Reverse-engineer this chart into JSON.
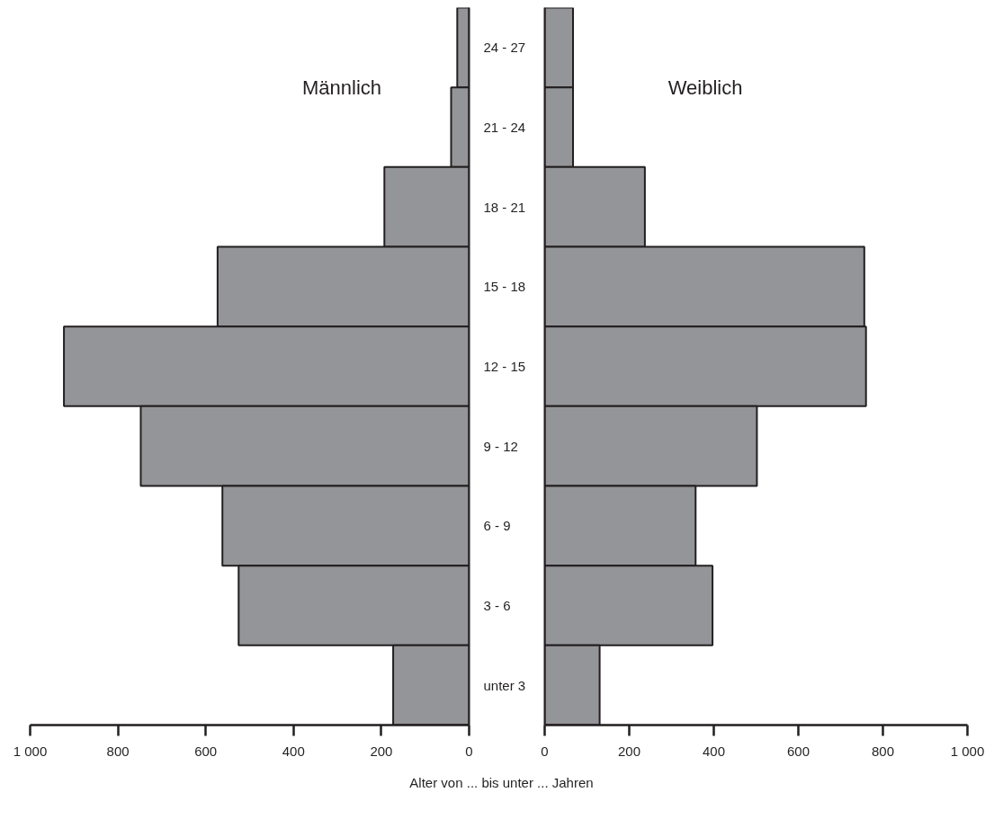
{
  "chart_data": [
    {
      "type": "bar",
      "orientation": "horizontal",
      "title": "Männlich",
      "ylabel": "Alter von ... bis unter ... Jahren",
      "categories": [
        "24 - 27",
        "21 - 24",
        "18 - 21",
        "15 - 18",
        "12 - 15",
        "9 - 12",
        "6 - 9",
        "3 - 6",
        "unter 3"
      ],
      "values": [
        27,
        41,
        193,
        573,
        923,
        748,
        562,
        525,
        173
      ],
      "color": "#949598",
      "xlim": [
        1000,
        0
      ],
      "xticks": [
        {
          "value": 1000,
          "label": "1 000"
        },
        800,
        600,
        400,
        200,
        0
      ],
      "grid": false
    },
    {
      "type": "bar",
      "orientation": "horizontal",
      "title": "Weiblich",
      "categories": [
        null,
        null,
        null,
        null,
        null,
        null,
        null,
        null,
        null
      ],
      "values": [
        67,
        67,
        237,
        756,
        760,
        502,
        357,
        397,
        130
      ],
      "color": "#949598",
      "xlim": [
        0,
        1000
      ],
      "xticks": [
        0,
        200,
        400,
        600,
        800,
        {
          "value": 1000,
          "label": "1 000"
        }
      ],
      "grid": false
    }
  ]
}
